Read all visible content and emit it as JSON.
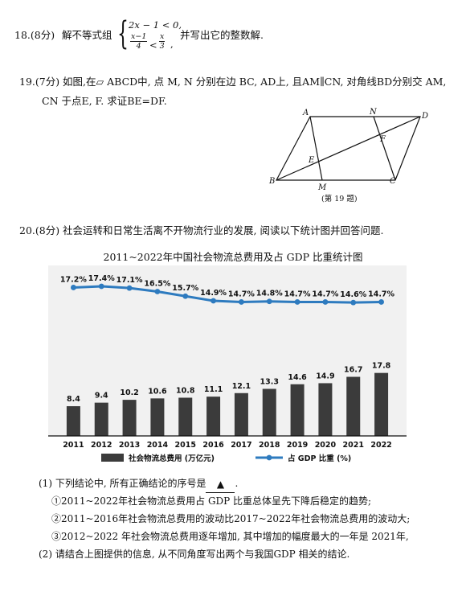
{
  "q18": {
    "number": "18.(8分)",
    "text": "解不等式组",
    "ineq1": "2x − 1 < 0,",
    "frac_left_num": "x−1",
    "frac_left_den": "4",
    "lt": "<",
    "frac_right_num": "x",
    "frac_right_den": "3",
    "trail_comma": ",",
    "tail": "并写出它的整数解."
  },
  "q19": {
    "line1": "19.(7分) 如图,在▱ ABCD中, 点 M, N 分别在边 BC, AD上, 且AM∥CN, 对角线BD分别交 AM,",
    "line2": "CN 于点E, F. 求证BE=DF.",
    "points": {
      "A": "A",
      "N": "N",
      "D": "D",
      "F": "F",
      "E": "E",
      "B": "B",
      "M": "M",
      "C": "C"
    },
    "caption": "(第 19 题)"
  },
  "q20": {
    "line1": "20.(8分) 社会运转和日常生活离不开物流行业的发展, 阅读以下统计图并回答问题.",
    "sub1": "(1) 下列结论中, 所有正确结论的序号是",
    "blank_mark": "▲",
    "sub1_end": ".",
    "c1": "①2011~2022年社会物流总费用占 GDP 比重总体呈先下降后稳定的趋势;",
    "c2": "②2011~2016年社会物流总费用的波动比2017~2022年社会物流总费用的波动大;",
    "c3": "③2012~2022 年社会物流总费用逐年增加, 其中增加的幅度最大的一年是 2021年,",
    "sub2": "(2) 请结合上图提供的信息, 从不同角度写出两个与我国GDP 相关的结论."
  },
  "chart_data": {
    "type": "bar",
    "title": "2011~2022年中国社会物流总费用及占 GDP 比重统计图",
    "categories": [
      "2011",
      "2012",
      "2013",
      "2014",
      "2015",
      "2016",
      "2017",
      "2018",
      "2019",
      "2020",
      "2021",
      "2022"
    ],
    "series": [
      {
        "name": "社会物流总费用 (万亿元)",
        "type": "bar",
        "values": [
          8.4,
          9.4,
          10.2,
          10.6,
          10.8,
          11.1,
          12.1,
          13.3,
          14.6,
          14.9,
          16.7,
          17.8
        ],
        "labels": [
          "8.4",
          "9.4",
          "10.2",
          "10.6",
          "10.8",
          "11.1",
          "12.1",
          "13.3",
          "14.6",
          "14.9",
          "16.7",
          "17.8"
        ]
      },
      {
        "name": "占 GDP 比重 (%)",
        "type": "line",
        "values": [
          17.2,
          17.4,
          17.1,
          16.5,
          15.7,
          14.9,
          14.7,
          14.8,
          14.7,
          14.7,
          14.6,
          14.7
        ],
        "labels": [
          "17.2%",
          "17.4%",
          "17.1%",
          "16.5%",
          "15.7%",
          "14.9%",
          "14.7%",
          "14.8%",
          "14.7%",
          "14.7%",
          "14.6%",
          "14.7%"
        ]
      }
    ],
    "legend": {
      "position": "bottom"
    },
    "colors": {
      "bar": "#3b3b3b",
      "line": "#2e7bbf",
      "axis": "#111111"
    }
  }
}
